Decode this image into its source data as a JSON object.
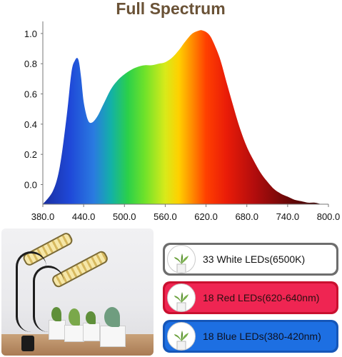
{
  "title": "Full Spectrum",
  "title_color": "#6a5236",
  "chart_data": {
    "type": "area",
    "title": "Full Spectrum",
    "xlabel": "",
    "ylabel": "",
    "x_ticks": [
      "380.0",
      "440.0",
      "500.0",
      "560.0",
      "620.0",
      "680.0",
      "740.0",
      "800.0"
    ],
    "y_ticks": [
      "0.0",
      "0.2",
      "0.4",
      "0.6",
      "0.8",
      "1.0"
    ],
    "xlim": [
      380,
      800
    ],
    "ylim": [
      -0.13,
      1.08
    ],
    "grid": false,
    "x": [
      380,
      395,
      405,
      415,
      422,
      427,
      432,
      436,
      440,
      446,
      452,
      460,
      470,
      480,
      490,
      500,
      510,
      520,
      530,
      540,
      550,
      560,
      570,
      580,
      590,
      600,
      610,
      615,
      620,
      625,
      630,
      640,
      650,
      660,
      670,
      680,
      690,
      700,
      710,
      720,
      730,
      740,
      750,
      760,
      770,
      780,
      790,
      800
    ],
    "y": [
      -0.13,
      -0.04,
      0.12,
      0.45,
      0.74,
      0.82,
      0.83,
      0.72,
      0.55,
      0.43,
      0.41,
      0.45,
      0.54,
      0.63,
      0.69,
      0.73,
      0.76,
      0.78,
      0.79,
      0.79,
      0.8,
      0.81,
      0.84,
      0.89,
      0.95,
      1.0,
      1.02,
      1.02,
      1.01,
      0.99,
      0.95,
      0.84,
      0.68,
      0.52,
      0.37,
      0.25,
      0.16,
      0.08,
      0.02,
      -0.03,
      -0.06,
      -0.08,
      -0.1,
      -0.11,
      -0.12,
      -0.12,
      -0.13,
      -0.13
    ]
  },
  "leds": [
    {
      "label": "33 White LEDs(6500K)",
      "color": "white"
    },
    {
      "label": "18 Red LEDs(620-640nm)",
      "color": "red"
    },
    {
      "label": "18 Blue LEDs(380-420nm)",
      "color": "blue"
    }
  ]
}
